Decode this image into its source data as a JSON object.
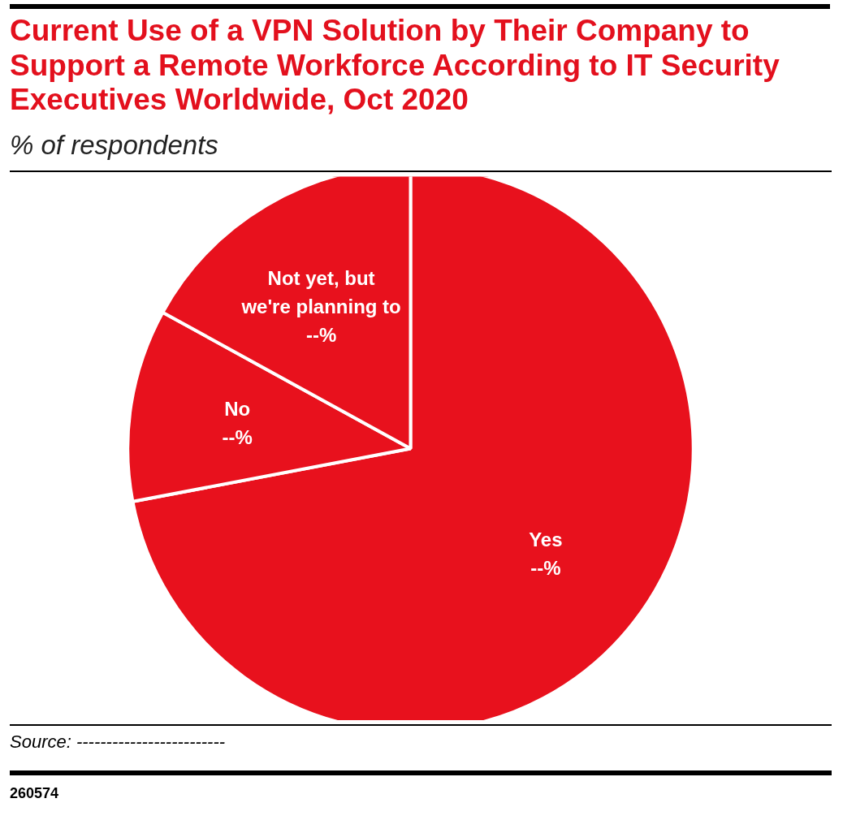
{
  "chart_data": {
    "type": "pie",
    "title": "Current Use of a VPN Solution by Their Company to Support a Remote Workforce According to IT Security Executives Worldwide, Oct 2020",
    "subtitle": "% of respondents",
    "categories": [
      "Yes",
      "No",
      "Not yet, but\nwe're planning to"
    ],
    "values": [
      72,
      11,
      17
    ],
    "colors": [
      "#e8111d",
      "#e8111d",
      "#e8111d"
    ],
    "value_labels": [
      "--%",
      "--%",
      "--%"
    ],
    "annotations": [
      "Source: -------------------------",
      "260574"
    ]
  }
}
